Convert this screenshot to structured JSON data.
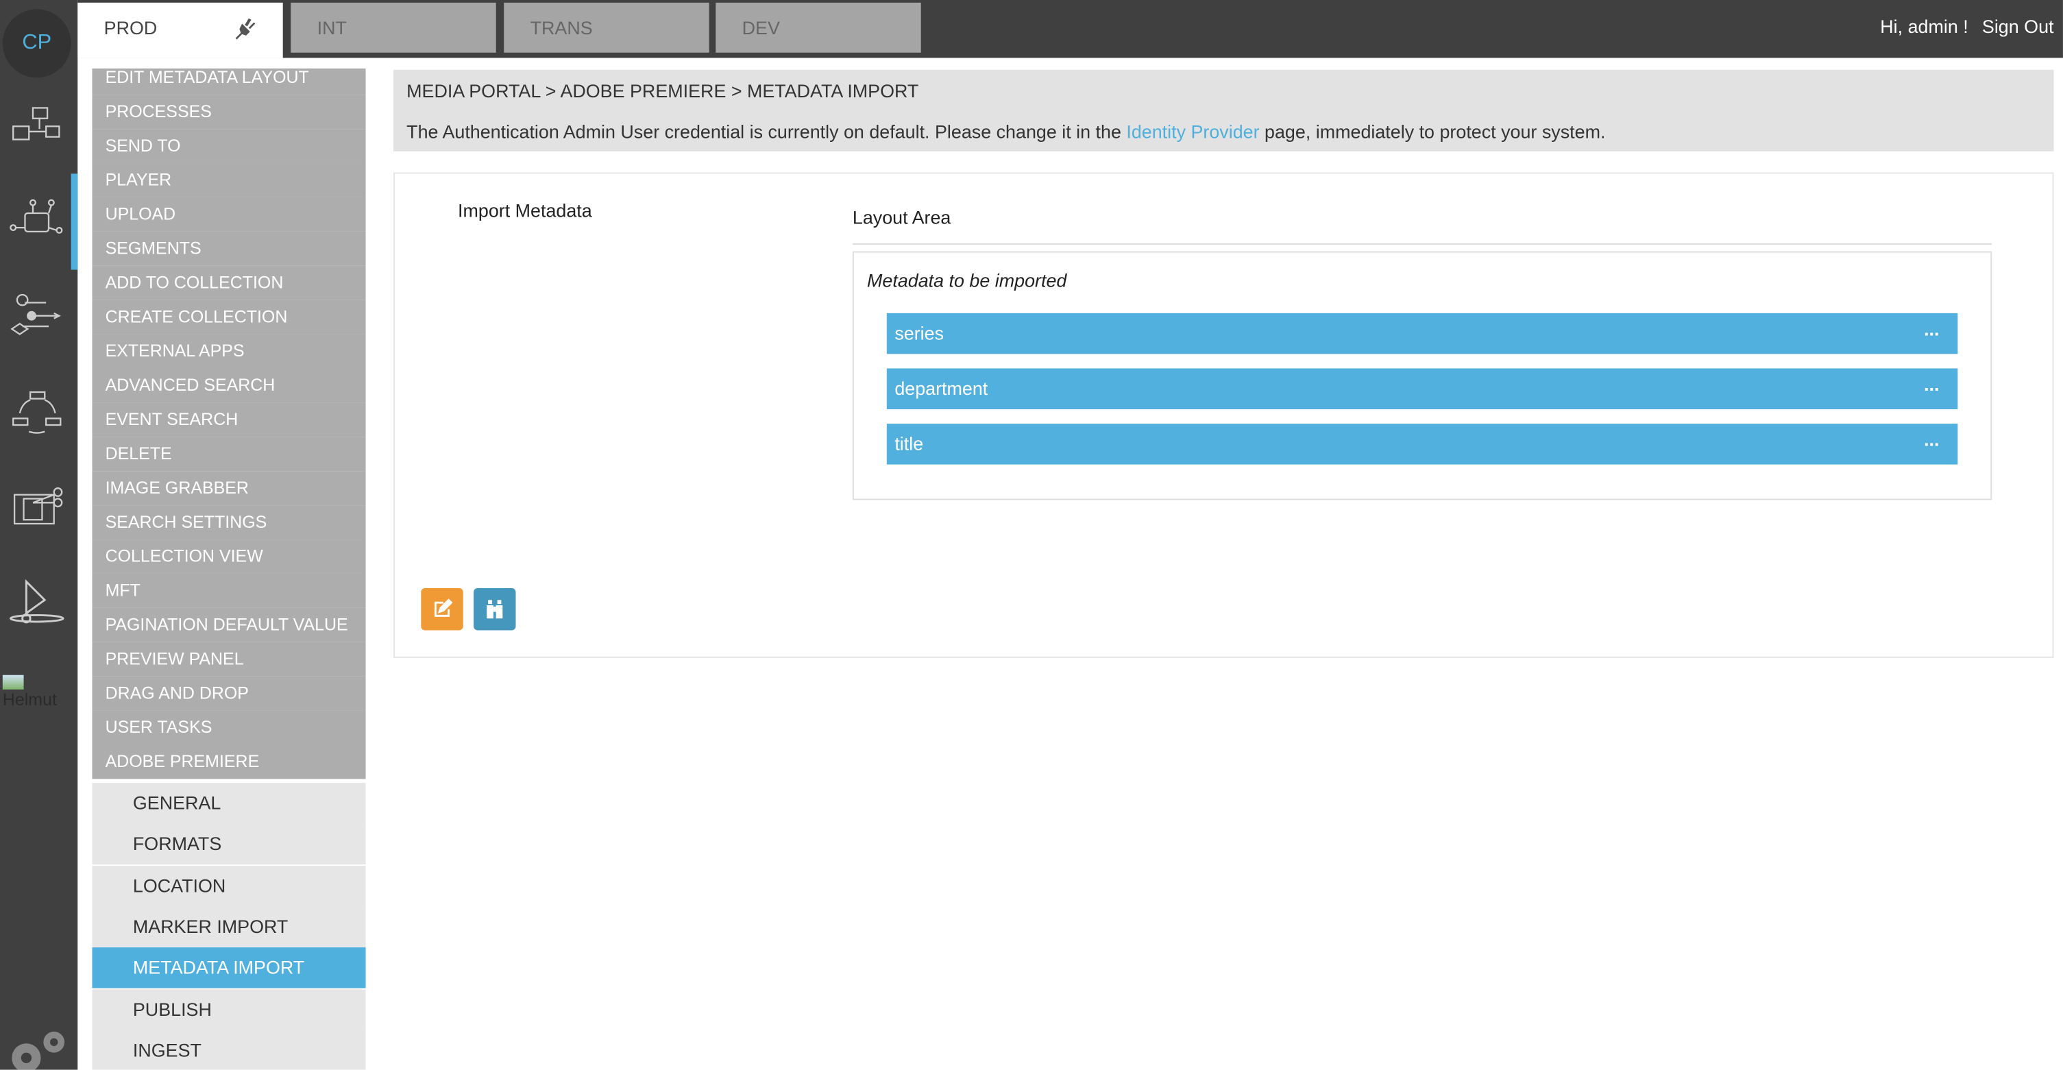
{
  "logo": "CP",
  "tabs": [
    {
      "label": "PROD",
      "active": true
    },
    {
      "label": "INT"
    },
    {
      "label": "TRANS"
    },
    {
      "label": "DEV"
    }
  ],
  "user": {
    "greeting": "Hi, admin !",
    "signout": "Sign Out"
  },
  "broken_image_alt": "Helmut",
  "menu": [
    "EDIT METADATA LAYOUT",
    "PROCESSES",
    "SEND TO",
    "PLAYER",
    "UPLOAD",
    "SEGMENTS",
    "ADD TO COLLECTION",
    "CREATE COLLECTION",
    "EXTERNAL APPS",
    "ADVANCED SEARCH",
    "EVENT SEARCH",
    "DELETE",
    "IMAGE GRABBER",
    "SEARCH SETTINGS",
    "COLLECTION VIEW",
    "MFT",
    "PAGINATION DEFAULT VALUE",
    "PREVIEW PANEL",
    "DRAG AND DROP",
    "USER TASKS",
    "ADOBE PREMIERE"
  ],
  "submenu": [
    "GENERAL",
    "FORMATS",
    "LOCATION",
    "MARKER IMPORT",
    "METADATA IMPORT",
    "PUBLISH",
    "INGEST"
  ],
  "submenu_selected": "METADATA IMPORT",
  "breadcrumb": "MEDIA PORTAL > ADOBE PREMIERE > METADATA IMPORT",
  "notice": {
    "before": "The Authentication Admin User credential is currently on default. Please change it in the ",
    "link": "Identity Provider",
    "after": " page, immediately to protect your system."
  },
  "main": {
    "import_label": "Import Metadata",
    "layout_label": "Layout Area",
    "box_title": "Metadata to be imported",
    "fields": [
      "series",
      "department",
      "title"
    ],
    "more": "..."
  },
  "colors": {
    "accent": "#4fb0dd",
    "edit_button": "#f09a36",
    "search_button": "#4697bd",
    "dark": "#404040"
  }
}
